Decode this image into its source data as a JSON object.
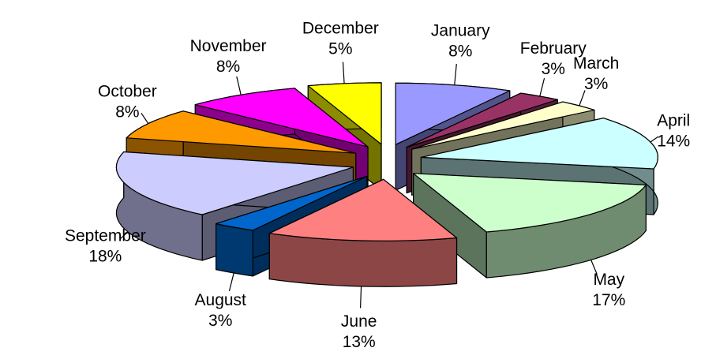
{
  "chart_data": {
    "type": "pie",
    "categories": [
      "January",
      "February",
      "March",
      "April",
      "May",
      "June",
      "August",
      "September",
      "October",
      "November",
      "December"
    ],
    "values": [
      8,
      3,
      3,
      14,
      17,
      13,
      3,
      18,
      8,
      8,
      5
    ],
    "value_labels": [
      "8%",
      "3%",
      "3%",
      "14%",
      "17%",
      "13%",
      "3%",
      "18%",
      "8%",
      "8%",
      "5%"
    ],
    "colors": [
      "#9999ff",
      "#993366",
      "#ffffcc",
      "#ccffff",
      "#ccffcc",
      "#ff8080",
      "#0066cc",
      "#ccccff",
      "#ff9900",
      "#ff00ff",
      "#ffff00"
    ],
    "exploded": true,
    "three_d": true
  }
}
